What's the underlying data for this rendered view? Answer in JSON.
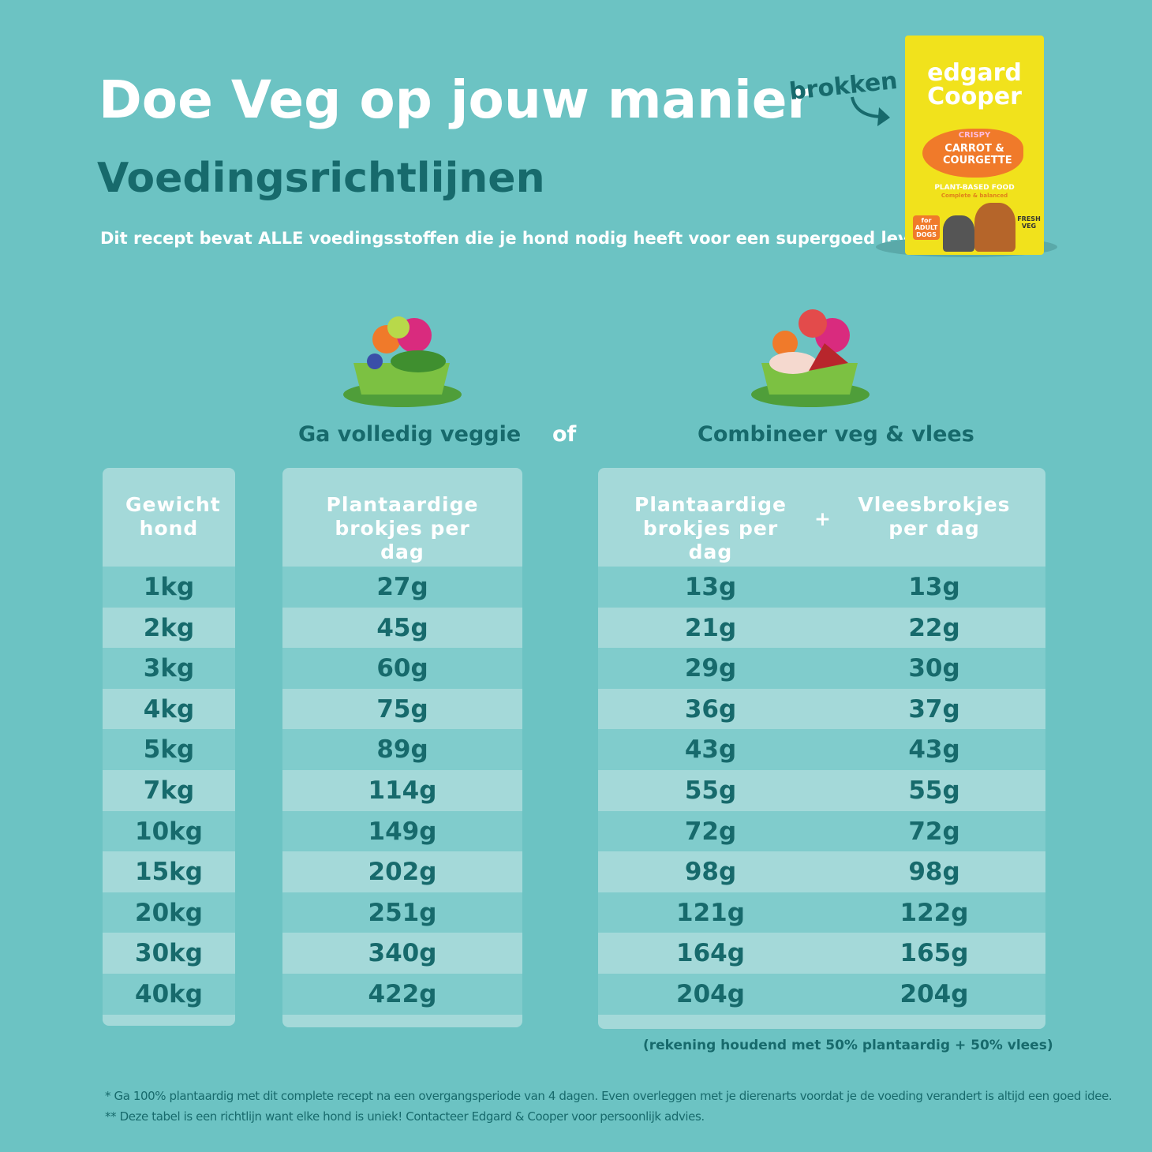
{
  "header": {
    "title": "Doe Veg op jouw manier",
    "subtitle": "Voedingsrichtlijnen",
    "description": "Dit recept bevat ALLE voedingsstoffen die je hond nodig heeft voor een supergoed leven",
    "arrow_label": "brokken"
  },
  "package": {
    "brand_top": "edgard",
    "brand_bottom": "Cooper",
    "flavor_prefix": "CRISPY",
    "flavor": "CARROT & COURGETTE",
    "food_type": "PLANT-BASED FOOD",
    "claim": "Complete & balanced",
    "audience": "for ADULT DOGS",
    "badge": "FRESH VEG"
  },
  "options": {
    "veggie": "Ga volledig veggie",
    "or": "of",
    "combined": "Combineer veg & vlees"
  },
  "table": {
    "headers": [
      "Gewicht hond",
      "Plantaardige brokjes per dag",
      "Plantaardige brokjes per dag",
      "Vleesbrokjes per dag"
    ],
    "plus": "+",
    "rows": [
      [
        "1kg",
        "27g",
        "13g",
        "13g"
      ],
      [
        "2kg",
        "45g",
        "21g",
        "22g"
      ],
      [
        "3kg",
        "60g",
        "29g",
        "30g"
      ],
      [
        "4kg",
        "75g",
        "36g",
        "37g"
      ],
      [
        "5kg",
        "89g",
        "43g",
        "43g"
      ],
      [
        "7kg",
        "114g",
        "55g",
        "55g"
      ],
      [
        "10kg",
        "149g",
        "72g",
        "72g"
      ],
      [
        "15kg",
        "202g",
        "98g",
        "98g"
      ],
      [
        "20kg",
        "251g",
        "121g",
        "122g"
      ],
      [
        "30kg",
        "340g",
        "164g",
        "165g"
      ],
      [
        "40kg",
        "422g",
        "204g",
        "204g"
      ]
    ]
  },
  "note": "(rekening houdend met 50% plantaardig + 50% vlees)",
  "footnotes": [
    "* Ga 100% plantaardig met dit complete recept na een overgangsperiode van 4 dagen. Even overleggen met je dierenarts voordat je de voeding verandert is altijd een goed idee.",
    "** Deze tabel is een richtlijn want elke hond is uniek! Contacteer Edgard & Cooper voor persoonlijk advies."
  ]
}
